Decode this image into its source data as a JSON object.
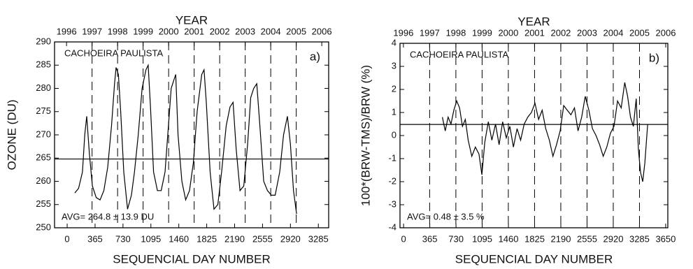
{
  "chart_data": [
    {
      "type": "line",
      "title_top": "YEAR",
      "xlabel": "SEQUENCIAL DAY NUMBER",
      "ylabel": "OZONE  (DU)",
      "station": "CACHOEIRA PAULISTA",
      "panel": "a)",
      "annotation": "AVG= 264.8 ± 13.9 DU",
      "hline": 264.8,
      "xlim": [
        -165,
        3420
      ],
      "xticks": [
        0,
        365,
        730,
        1095,
        1460,
        1825,
        2190,
        2555,
        2920,
        3285
      ],
      "x2lim": [
        1995.53,
        2006.27
      ],
      "x2ticks": [
        1996,
        1997,
        1998,
        1999,
        2000,
        2001,
        2002,
        2003,
        2004,
        2005,
        2006
      ],
      "ylim": [
        250,
        290
      ],
      "yticks": [
        250,
        255,
        260,
        265,
        270,
        275,
        280,
        285,
        290
      ],
      "color": "#000000",
      "x": [
        100,
        150,
        200,
        230,
        256,
        290,
        330,
        380,
        430,
        480,
        530,
        580,
        620,
        640,
        670,
        700,
        740,
        790,
        840,
        880,
        930,
        980,
        1030,
        1060,
        1090,
        1130,
        1180,
        1230,
        1280,
        1320,
        1360,
        1400,
        1420,
        1450,
        1500,
        1550,
        1600,
        1650,
        1700,
        1760,
        1790,
        1820,
        1870,
        1920,
        1970,
        2020,
        2080,
        2130,
        2170,
        2210,
        2260,
        2310,
        2360,
        2400,
        2440,
        2480,
        2520,
        2570,
        2620,
        2670,
        2720,
        2780,
        2830,
        2880,
        2920,
        2960,
        3000
      ],
      "values": [
        257.5,
        258.5,
        262,
        270,
        274,
        266,
        259,
        256.5,
        256,
        258,
        263,
        272,
        281,
        284.5,
        283,
        275,
        262,
        254,
        257,
        262,
        270,
        280,
        284,
        285,
        276,
        262,
        258,
        258,
        262,
        271,
        280,
        282,
        283,
        270,
        260,
        256,
        258,
        264,
        275,
        283,
        284,
        277,
        262,
        254,
        255,
        262,
        272,
        276,
        277,
        267,
        258,
        259,
        268,
        278,
        280,
        281,
        272,
        260,
        258,
        257,
        257,
        262,
        270,
        274,
        268,
        258,
        253
      ]
    },
    {
      "type": "line",
      "title_top": "YEAR",
      "xlabel": "SEQUENCIAL DAY NUMBER",
      "ylabel": "100*(BRW-TMS)/BRW  (%)",
      "station": "CACHOEIRA PAULISTA",
      "panel": "b)",
      "annotation": "AVG= 0.48 ± 3.5 %",
      "hline": 0.48,
      "xlim": [
        -50,
        3680
      ],
      "xticks": [
        0,
        365,
        730,
        1095,
        1460,
        1825,
        2190,
        2555,
        2920,
        3285,
        3650
      ],
      "x2lim": [
        1995.87,
        2006.08
      ],
      "x2ticks": [
        1996,
        1997,
        1998,
        1999,
        2000,
        2001,
        2002,
        2003,
        2004,
        2005,
        2006
      ],
      "ylim": [
        -4,
        4
      ],
      "yticks": [
        -4,
        -3,
        -2,
        -1,
        0,
        1,
        2,
        3,
        4
      ],
      "color": "#000000",
      "x": [
        540,
        580,
        620,
        660,
        700,
        740,
        780,
        820,
        860,
        900,
        950,
        1000,
        1050,
        1090,
        1130,
        1180,
        1230,
        1280,
        1330,
        1380,
        1430,
        1480,
        1530,
        1580,
        1630,
        1680,
        1730,
        1780,
        1830,
        1880,
        1930,
        1980,
        2030,
        2080,
        2130,
        2180,
        2230,
        2280,
        2330,
        2380,
        2430,
        2480,
        2530,
        2580,
        2630,
        2680,
        2730,
        2780,
        2830,
        2880,
        2930,
        2980,
        3030,
        3080,
        3120,
        3160,
        3200,
        3240,
        3270,
        3300,
        3330,
        3360,
        3400
      ],
      "values": [
        0.8,
        0.2,
        0.8,
        0.5,
        1.1,
        1.5,
        1.2,
        0.4,
        0.7,
        -0.2,
        -0.9,
        -0.5,
        -0.8,
        -1.7,
        -0.3,
        0.6,
        -0.2,
        0.5,
        -0.4,
        0.6,
        -0.1,
        0.4,
        -0.5,
        0.3,
        -0.2,
        0.5,
        0.8,
        1.0,
        1.4,
        0.7,
        1.1,
        0.3,
        -0.2,
        -0.9,
        -0.4,
        0.2,
        1.3,
        1.1,
        0.9,
        1.2,
        0.2,
        0.8,
        1.7,
        1.1,
        0.3,
        0.0,
        -0.4,
        -0.9,
        -0.5,
        0.1,
        0.4,
        1.5,
        1.2,
        2.3,
        1.7,
        0.8,
        0.4,
        1.6,
        -0.6,
        -1.6,
        -2.0,
        -1.2,
        0.5
      ]
    }
  ]
}
